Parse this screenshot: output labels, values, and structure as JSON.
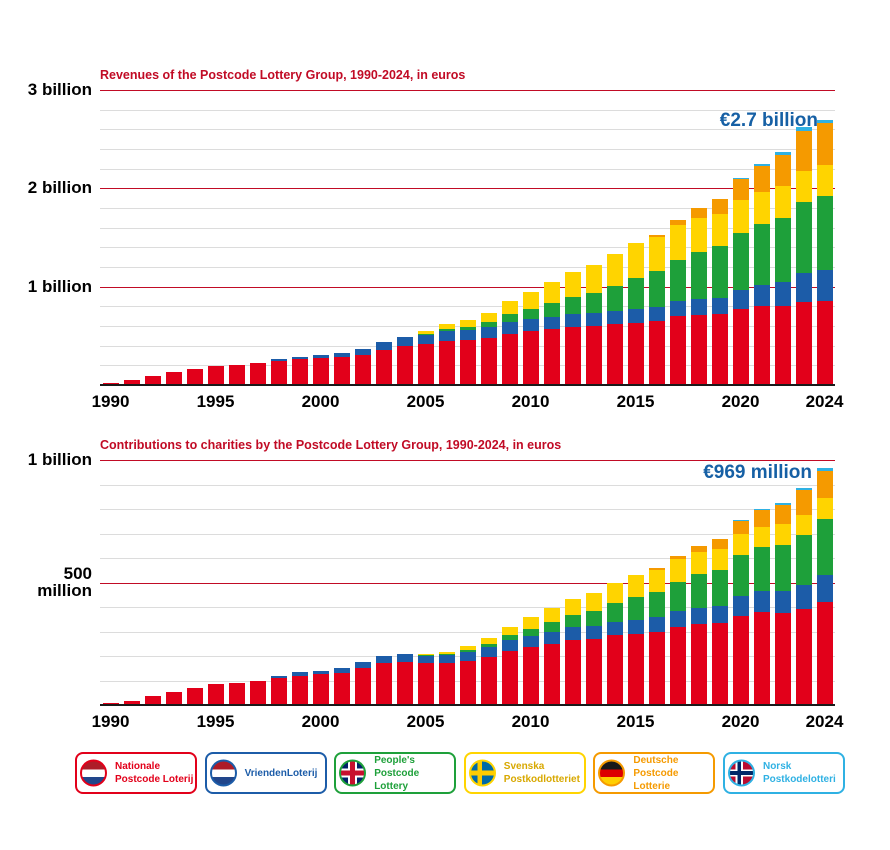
{
  "page": {
    "background": "#ffffff"
  },
  "series": [
    {
      "key": "nationale",
      "name": "Nationale Postcode Loterij",
      "label_lines": [
        "Nationale",
        "Postcode Loterij"
      ],
      "color": "#e2001a",
      "flag": "netherlands-flag"
    },
    {
      "key": "vrienden",
      "name": "VriendenLoterij",
      "label_lines": [
        "VriendenLoterij"
      ],
      "color": "#1c5ca8",
      "flag": "netherlands-flag"
    },
    {
      "key": "peoples",
      "name": "People's Postcode Lottery",
      "label_lines": [
        "People's",
        "Postcode Lottery"
      ],
      "color": "#1ea03a",
      "flag": "uk-flag"
    },
    {
      "key": "svenska",
      "name": "Svenska Postkodlotteriet",
      "label_lines": [
        "Svenska",
        "Postkodlotteriet"
      ],
      "color": "#ffd400",
      "text_color": "#d8a800",
      "flag": "sweden-flag"
    },
    {
      "key": "deutsche",
      "name": "Deutsche Postcode Lotterie",
      "label_lines": [
        "Deutsche",
        "Postcode Lotterie"
      ],
      "color": "#f59a00",
      "flag": "germany-flag"
    },
    {
      "key": "norsk",
      "name": "Norsk Postkodelotteri",
      "label_lines": [
        "Norsk",
        "Postkodelotteri"
      ],
      "color": "#2fb1e3",
      "flag": "norway-flag"
    }
  ],
  "chart_data": [
    {
      "type": "bar",
      "stacked": true,
      "title": "Revenues of the Postcode Lottery Group, 1990-2024, in euros",
      "annotation": "€2.7 billion",
      "unit": "billions of euros",
      "ylim": [
        0,
        3
      ],
      "y_minor_step": 0.2,
      "y_major_lines": [
        1,
        2,
        3
      ],
      "y_tick_labels": [
        {
          "value": 3,
          "lines": [
            "3 billion"
          ]
        },
        {
          "value": 2,
          "lines": [
            "2 billion"
          ]
        },
        {
          "value": 1,
          "lines": [
            "1 billion"
          ]
        }
      ],
      "x": [
        1990,
        1991,
        1992,
        1993,
        1994,
        1995,
        1996,
        1997,
        1998,
        1999,
        2000,
        2001,
        2002,
        2003,
        2004,
        2005,
        2006,
        2007,
        2008,
        2009,
        2010,
        2011,
        2012,
        2013,
        2014,
        2015,
        2016,
        2017,
        2018,
        2019,
        2020,
        2021,
        2022,
        2023,
        2024
      ],
      "x_tick_years": [
        1990,
        1995,
        2000,
        2005,
        2010,
        2015,
        2020,
        2024
      ],
      "series": [
        {
          "name": "Nationale Postcode Loterij",
          "values": [
            0.02,
            0.05,
            0.09,
            0.13,
            0.16,
            0.19,
            0.2,
            0.22,
            0.24,
            0.26,
            0.27,
            0.28,
            0.31,
            0.36,
            0.4,
            0.42,
            0.45,
            0.46,
            0.48,
            0.52,
            0.55,
            0.57,
            0.59,
            0.6,
            0.62,
            0.63,
            0.65,
            0.7,
            0.71,
            0.72,
            0.77,
            0.8,
            0.8,
            0.84,
            0.85
          ]
        },
        {
          "name": "VriendenLoterij",
          "values": [
            0,
            0,
            0,
            0,
            0,
            0,
            0,
            0,
            0.02,
            0.03,
            0.04,
            0.05,
            0.06,
            0.08,
            0.09,
            0.09,
            0.1,
            0.1,
            0.11,
            0.12,
            0.12,
            0.12,
            0.13,
            0.13,
            0.13,
            0.14,
            0.14,
            0.15,
            0.16,
            0.17,
            0.2,
            0.22,
            0.25,
            0.3,
            0.32
          ]
        },
        {
          "name": "People's Postcode Lottery",
          "values": [
            0,
            0,
            0,
            0,
            0,
            0,
            0,
            0,
            0,
            0,
            0,
            0,
            0,
            0,
            0,
            0.01,
            0.02,
            0.03,
            0.05,
            0.08,
            0.1,
            0.14,
            0.18,
            0.21,
            0.26,
            0.32,
            0.37,
            0.42,
            0.48,
            0.52,
            0.58,
            0.62,
            0.65,
            0.72,
            0.75
          ]
        },
        {
          "name": "Svenska Postkodlotteriet",
          "values": [
            0,
            0,
            0,
            0,
            0,
            0,
            0,
            0,
            0,
            0,
            0,
            0,
            0,
            0,
            0,
            0.03,
            0.05,
            0.07,
            0.09,
            0.13,
            0.18,
            0.22,
            0.25,
            0.28,
            0.32,
            0.35,
            0.35,
            0.36,
            0.35,
            0.33,
            0.33,
            0.32,
            0.32,
            0.32,
            0.32
          ]
        },
        {
          "name": "Deutsche Postcode Lotterie",
          "values": [
            0,
            0,
            0,
            0,
            0,
            0,
            0,
            0,
            0,
            0,
            0,
            0,
            0,
            0,
            0,
            0,
            0,
            0,
            0,
            0,
            0,
            0,
            0,
            0,
            0,
            0,
            0.02,
            0.05,
            0.1,
            0.15,
            0.22,
            0.27,
            0.32,
            0.4,
            0.42
          ]
        },
        {
          "name": "Norsk Postkodelotteri",
          "values": [
            0,
            0,
            0,
            0,
            0,
            0,
            0,
            0,
            0,
            0,
            0,
            0,
            0,
            0,
            0,
            0,
            0,
            0,
            0,
            0,
            0,
            0,
            0,
            0,
            0,
            0,
            0,
            0,
            0,
            0.005,
            0.01,
            0.02,
            0.03,
            0.04,
            0.04
          ]
        }
      ]
    },
    {
      "type": "bar",
      "stacked": true,
      "title": "Contributions to charities by the Postcode Lottery Group, 1990-2024, in euros",
      "annotation": "€969 million",
      "unit": "millions of euros",
      "ylim": [
        0,
        1000
      ],
      "y_minor_step": 100,
      "y_major_lines": [
        500,
        1000
      ],
      "y_tick_labels": [
        {
          "value": 1000,
          "lines": [
            "1 billion"
          ]
        },
        {
          "value": 500,
          "lines": [
            "500",
            "million"
          ]
        }
      ],
      "x": [
        1990,
        1991,
        1992,
        1993,
        1994,
        1995,
        1996,
        1997,
        1998,
        1999,
        2000,
        2001,
        2002,
        2003,
        2004,
        2005,
        2006,
        2007,
        2008,
        2009,
        2010,
        2011,
        2012,
        2013,
        2014,
        2015,
        2016,
        2017,
        2018,
        2019,
        2020,
        2021,
        2022,
        2023,
        2024
      ],
      "x_tick_years": [
        1990,
        1995,
        2000,
        2005,
        2010,
        2015,
        2020,
        2024
      ],
      "series": [
        {
          "name": "Nationale Postcode Loterij",
          "values": [
            9,
            18,
            35,
            55,
            70,
            85,
            90,
            100,
            110,
            120,
            125,
            130,
            150,
            170,
            175,
            170,
            170,
            180,
            195,
            220,
            235,
            250,
            265,
            270,
            285,
            290,
            300,
            320,
            330,
            335,
            365,
            380,
            375,
            390,
            420
          ]
        },
        {
          "name": "VriendenLoterij",
          "values": [
            0,
            0,
            0,
            0,
            0,
            0,
            0,
            0,
            10,
            15,
            15,
            20,
            25,
            30,
            35,
            32,
            33,
            35,
            40,
            45,
            48,
            50,
            52,
            54,
            55,
            57,
            58,
            62,
            65,
            68,
            80,
            85,
            90,
            100,
            110
          ]
        },
        {
          "name": "People's Postcode Lottery",
          "values": [
            0,
            0,
            0,
            0,
            0,
            0,
            0,
            0,
            0,
            0,
            0,
            0,
            0,
            0,
            0,
            2,
            4,
            8,
            13,
            20,
            28,
            38,
            50,
            60,
            75,
            92,
            105,
            122,
            140,
            150,
            168,
            180,
            190,
            205,
            230
          ]
        },
        {
          "name": "Svenska Postkodlotteriet",
          "values": [
            0,
            0,
            0,
            0,
            0,
            0,
            0,
            0,
            0,
            0,
            0,
            0,
            0,
            0,
            0,
            5,
            10,
            18,
            25,
            35,
            48,
            58,
            65,
            73,
            82,
            90,
            90,
            92,
            90,
            85,
            85,
            83,
            82,
            82,
            85
          ]
        },
        {
          "name": "Deutsche Postcode Lotterie",
          "values": [
            0,
            0,
            0,
            0,
            0,
            0,
            0,
            0,
            0,
            0,
            0,
            0,
            0,
            0,
            0,
            0,
            0,
            0,
            0,
            0,
            0,
            0,
            0,
            0,
            0,
            0,
            5,
            12,
            25,
            38,
            55,
            68,
            80,
            100,
            112
          ]
        },
        {
          "name": "Norsk Postkodelotteri",
          "values": [
            0,
            0,
            0,
            0,
            0,
            0,
            0,
            0,
            0,
            0,
            0,
            0,
            0,
            0,
            0,
            0,
            0,
            0,
            0,
            0,
            0,
            0,
            0,
            0,
            0,
            0,
            0,
            0,
            0,
            2,
            3,
            5,
            7,
            9,
            12
          ]
        }
      ]
    }
  ],
  "legend": {
    "items": [
      "Nationale Postcode Loterij",
      "VriendenLoterij",
      "People's Postcode Lottery",
      "Svenska Postkodlotteriet",
      "Deutsche Postcode Lotterie",
      "Norsk Postkodelotteri"
    ]
  },
  "colors": {
    "title_red": "#c10b25",
    "annotation_blue": "#1660a5",
    "gridline_gray": "#dcdcdc",
    "axis_black": "#1a1a1a"
  }
}
